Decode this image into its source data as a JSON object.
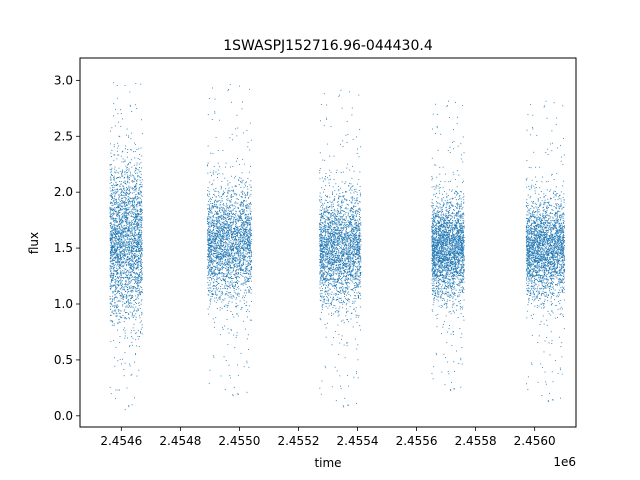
{
  "chart_data": {
    "type": "scatter",
    "title": "1SWASPJ152716.96-044430.4",
    "xlabel": "time",
    "ylabel": "flux",
    "x_offset_label": "1e6",
    "xlim": [
      2.45446,
      2.45614
    ],
    "ylim": [
      -0.1,
      3.2
    ],
    "xticks": [
      2.4546,
      2.4548,
      2.455,
      2.4552,
      2.4554,
      2.4556,
      2.4558,
      2.456
    ],
    "xtick_labels": [
      "2.4546",
      "2.4548",
      "2.4550",
      "2.4552",
      "2.4554",
      "2.4556",
      "2.4558",
      "2.4560"
    ],
    "yticks": [
      0.0,
      0.5,
      1.0,
      1.5,
      2.0,
      2.5,
      3.0
    ],
    "ytick_labels": [
      "0.0",
      "0.5",
      "1.0",
      "1.5",
      "2.0",
      "2.5",
      "3.0"
    ],
    "grid": false,
    "marker_color": "#1f77b4",
    "series": [
      {
        "clusters": [
          {
            "x_range": [
              2.45456,
              2.45467
            ],
            "y_center": 1.55,
            "y_spread": 0.35,
            "y_range": [
              0.05,
              3.05
            ]
          },
          {
            "x_range": [
              2.45489,
              2.45504
            ],
            "y_center": 1.55,
            "y_spread": 0.25,
            "y_range": [
              0.15,
              3.0
            ]
          },
          {
            "x_range": [
              2.45527,
              2.45541
            ],
            "y_center": 1.5,
            "y_spread": 0.25,
            "y_range": [
              0.05,
              2.95
            ]
          },
          {
            "x_range": [
              2.45565,
              2.45576
            ],
            "y_center": 1.5,
            "y_spread": 0.22,
            "y_range": [
              0.2,
              2.85
            ]
          },
          {
            "x_range": [
              2.45597,
              2.4561
            ],
            "y_center": 1.5,
            "y_spread": 0.22,
            "y_range": [
              0.1,
              2.85
            ]
          }
        ]
      }
    ]
  }
}
